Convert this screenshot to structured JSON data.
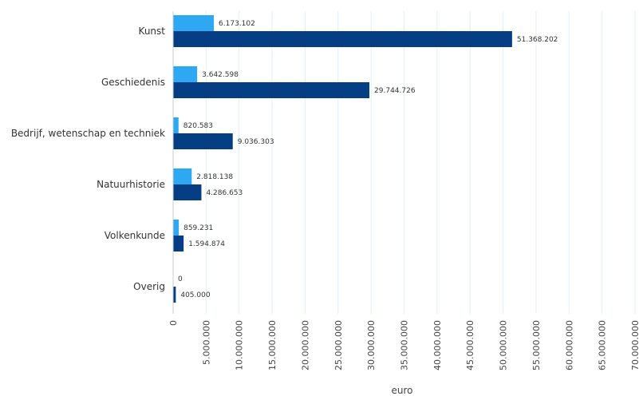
{
  "chart_data": {
    "type": "bar",
    "orientation": "horizontal",
    "categories": [
      "Kunst",
      "Geschiedenis",
      "Bedrijf, wetenschap en techniek",
      "Natuurhistorie",
      "Volkenkunde",
      "Overig"
    ],
    "series": [
      {
        "color": "#2ea8f2",
        "values": [
          6173102,
          3642598,
          820583,
          2818138,
          859231,
          0
        ],
        "data_labels": [
          "6.173.102",
          "3.642.598",
          "820.583",
          "2.818.138",
          "859.231",
          "0"
        ]
      },
      {
        "color": "#063e85",
        "values": [
          51368202,
          29744726,
          9036303,
          4286653,
          1594874,
          405000
        ],
        "data_labels": [
          "51.368.202",
          "29.744.726",
          "9.036.303",
          "4.286.653",
          "1.594.874",
          "405.000"
        ]
      }
    ],
    "xlabel": "euro",
    "xlim": [
      0,
      70000000
    ],
    "xticks": [
      0,
      5000000,
      10000000,
      15000000,
      20000000,
      25000000,
      30000000,
      35000000,
      40000000,
      45000000,
      50000000,
      55000000,
      60000000,
      65000000,
      70000000
    ],
    "xtick_labels": [
      "0",
      "5.000.000",
      "10.000.000",
      "15.000.000",
      "20.000.000",
      "25.000.000",
      "30.000.000",
      "35.000.000",
      "40.000.000",
      "45.000.000",
      "50.000.000",
      "55.000.000",
      "60.000.000",
      "65.000.000",
      "70.000.000"
    ],
    "grid": "vertical",
    "gridline_color": "#dff0fb",
    "legend": "none"
  }
}
